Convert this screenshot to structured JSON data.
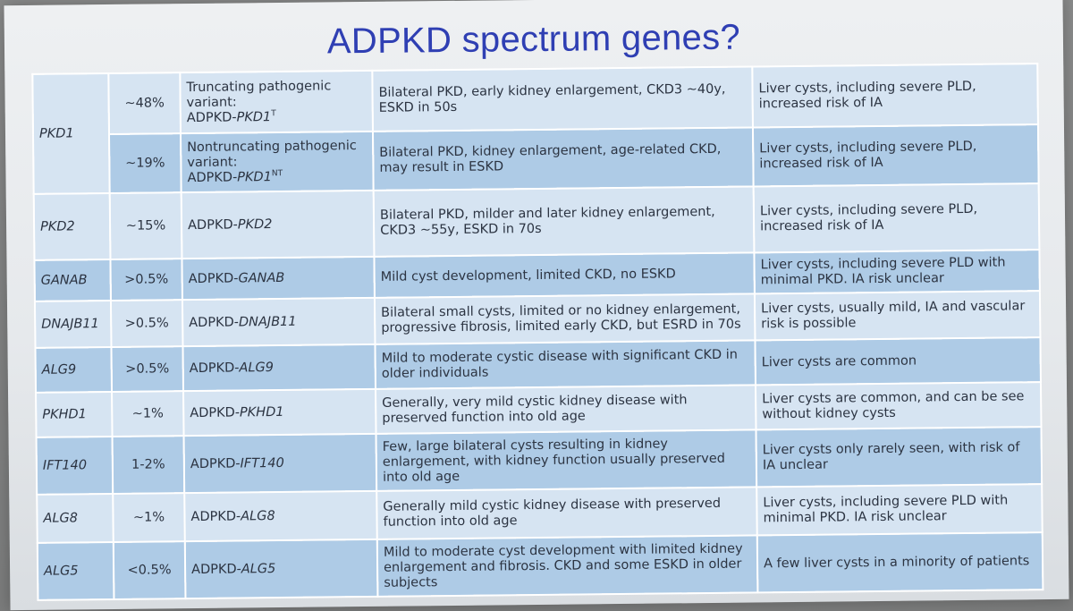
{
  "slide": {
    "title": "ADPKD spectrum genes?"
  },
  "rows": [
    {
      "gene": "PKD1",
      "frequency": "~48%",
      "designation_line1": "Truncating pathogenic",
      "designation_line2": "variant:",
      "designation_prefix": "ADPKD-",
      "designation_gene": "PKD1",
      "designation_sup": "T",
      "kidney": "Bilateral PKD, early kidney enlargement, CKD3 ~40y, ESKD in 50s",
      "extrarenal": "Liver cysts, including severe PLD, increased risk of IA"
    },
    {
      "frequency": "~19%",
      "designation_line1": "Nontruncating pathogenic",
      "designation_line2": "variant:",
      "designation_prefix": "ADPKD-",
      "designation_gene": "PKD1",
      "designation_sup": "NT",
      "kidney": "Bilateral PKD, kidney enlargement, age-related CKD, may result in ESKD",
      "extrarenal": "Liver cysts, including severe PLD, increased risk of IA"
    },
    {
      "gene": "PKD2",
      "frequency": "~15%",
      "designation_prefix": "ADPKD-",
      "designation_gene": "PKD2",
      "kidney": "Bilateral PKD, milder and later kidney enlargement, CKD3 ~55y, ESKD in 70s",
      "extrarenal": "Liver cysts, including severe PLD, increased risk of IA"
    },
    {
      "gene": "GANAB",
      "frequency": ">0.5%",
      "designation_prefix": "ADPKD-",
      "designation_gene": "GANAB",
      "kidney": "Mild cyst development, limited CKD, no ESKD",
      "extrarenal": "Liver cysts, including severe PLD with minimal PKD. IA risk unclear"
    },
    {
      "gene": "DNAJB11",
      "frequency": ">0.5%",
      "designation_prefix": "ADPKD-",
      "designation_gene": "DNAJB11",
      "kidney": "Bilateral small cysts, limited or no kidney enlargement, progressive fibrosis, limited early CKD, but ESRD in 70s",
      "extrarenal": "Liver cysts, usually mild, IA and vascular risk is possible"
    },
    {
      "gene": "ALG9",
      "frequency": ">0.5%",
      "designation_prefix": "ADPKD-",
      "designation_gene": "ALG9",
      "kidney": "Mild to moderate cystic disease with significant CKD in older individuals",
      "extrarenal": "Liver cysts are common"
    },
    {
      "gene": "PKHD1",
      "frequency": "~1%",
      "designation_prefix": "ADPKD-",
      "designation_gene": "PKHD1",
      "kidney": "Generally, very mild cystic kidney disease with preserved function into old age",
      "extrarenal": "Liver cysts are common, and can be see without kidney cysts"
    },
    {
      "gene": "IFT140",
      "frequency": "1-2%",
      "designation_prefix": "ADPKD-",
      "designation_gene": "IFT140",
      "kidney": "Few, large bilateral cysts resulting in kidney enlargement, with kidney function usually preserved into old age",
      "extrarenal": "Liver cysts only rarely seen, with risk of IA unclear"
    },
    {
      "gene": "ALG8",
      "frequency": "~1%",
      "designation_prefix": "ADPKD-",
      "designation_gene": "ALG8",
      "kidney": "Generally mild cystic kidney disease with preserved function into old age",
      "extrarenal": "Liver cysts, including severe PLD with minimal PKD. IA risk unclear"
    },
    {
      "gene": "ALG5",
      "frequency": "<0.5%",
      "designation_prefix": "ADPKD-",
      "designation_gene": "ALG5",
      "kidney": "Mild to moderate cyst development with limited kidney enlargement and fibrosis. CKD and some ESKD in older subjects",
      "extrarenal": "A few liver cysts in a minority of patients"
    }
  ],
  "colors": {
    "title": "#2f3fb3",
    "row_light": "#d6e4f2",
    "row_dark": "#aecbe6",
    "text": "#2c3442"
  }
}
